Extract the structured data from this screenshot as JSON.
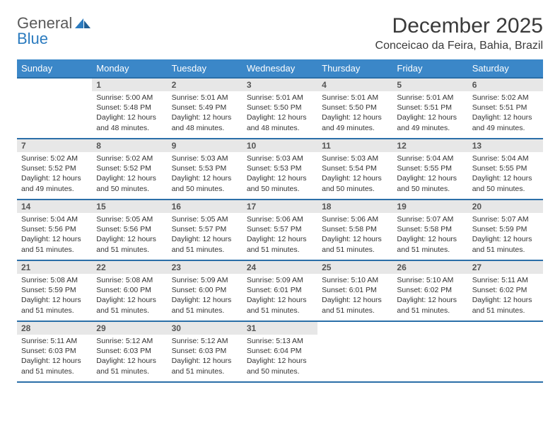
{
  "brand": {
    "part1": "General",
    "part2": "Blue"
  },
  "title": "December 2025",
  "location": "Conceicao da Feira, Bahia, Brazil",
  "colors": {
    "header_bg": "#3b87c8",
    "header_border": "#2b6fa8",
    "daynum_bg": "#e7e7e7",
    "text": "#333333",
    "brand_gray": "#5a5a5a",
    "brand_blue": "#2b7bbf"
  },
  "weekdays": [
    "Sunday",
    "Monday",
    "Tuesday",
    "Wednesday",
    "Thursday",
    "Friday",
    "Saturday"
  ],
  "weeks": [
    [
      {
        "day": "",
        "sunrise": "",
        "sunset": "",
        "daylight": ""
      },
      {
        "day": "1",
        "sunrise": "Sunrise: 5:00 AM",
        "sunset": "Sunset: 5:48 PM",
        "daylight": "Daylight: 12 hours and 48 minutes."
      },
      {
        "day": "2",
        "sunrise": "Sunrise: 5:01 AM",
        "sunset": "Sunset: 5:49 PM",
        "daylight": "Daylight: 12 hours and 48 minutes."
      },
      {
        "day": "3",
        "sunrise": "Sunrise: 5:01 AM",
        "sunset": "Sunset: 5:50 PM",
        "daylight": "Daylight: 12 hours and 48 minutes."
      },
      {
        "day": "4",
        "sunrise": "Sunrise: 5:01 AM",
        "sunset": "Sunset: 5:50 PM",
        "daylight": "Daylight: 12 hours and 49 minutes."
      },
      {
        "day": "5",
        "sunrise": "Sunrise: 5:01 AM",
        "sunset": "Sunset: 5:51 PM",
        "daylight": "Daylight: 12 hours and 49 minutes."
      },
      {
        "day": "6",
        "sunrise": "Sunrise: 5:02 AM",
        "sunset": "Sunset: 5:51 PM",
        "daylight": "Daylight: 12 hours and 49 minutes."
      }
    ],
    [
      {
        "day": "7",
        "sunrise": "Sunrise: 5:02 AM",
        "sunset": "Sunset: 5:52 PM",
        "daylight": "Daylight: 12 hours and 49 minutes."
      },
      {
        "day": "8",
        "sunrise": "Sunrise: 5:02 AM",
        "sunset": "Sunset: 5:52 PM",
        "daylight": "Daylight: 12 hours and 50 minutes."
      },
      {
        "day": "9",
        "sunrise": "Sunrise: 5:03 AM",
        "sunset": "Sunset: 5:53 PM",
        "daylight": "Daylight: 12 hours and 50 minutes."
      },
      {
        "day": "10",
        "sunrise": "Sunrise: 5:03 AM",
        "sunset": "Sunset: 5:53 PM",
        "daylight": "Daylight: 12 hours and 50 minutes."
      },
      {
        "day": "11",
        "sunrise": "Sunrise: 5:03 AM",
        "sunset": "Sunset: 5:54 PM",
        "daylight": "Daylight: 12 hours and 50 minutes."
      },
      {
        "day": "12",
        "sunrise": "Sunrise: 5:04 AM",
        "sunset": "Sunset: 5:55 PM",
        "daylight": "Daylight: 12 hours and 50 minutes."
      },
      {
        "day": "13",
        "sunrise": "Sunrise: 5:04 AM",
        "sunset": "Sunset: 5:55 PM",
        "daylight": "Daylight: 12 hours and 50 minutes."
      }
    ],
    [
      {
        "day": "14",
        "sunrise": "Sunrise: 5:04 AM",
        "sunset": "Sunset: 5:56 PM",
        "daylight": "Daylight: 12 hours and 51 minutes."
      },
      {
        "day": "15",
        "sunrise": "Sunrise: 5:05 AM",
        "sunset": "Sunset: 5:56 PM",
        "daylight": "Daylight: 12 hours and 51 minutes."
      },
      {
        "day": "16",
        "sunrise": "Sunrise: 5:05 AM",
        "sunset": "Sunset: 5:57 PM",
        "daylight": "Daylight: 12 hours and 51 minutes."
      },
      {
        "day": "17",
        "sunrise": "Sunrise: 5:06 AM",
        "sunset": "Sunset: 5:57 PM",
        "daylight": "Daylight: 12 hours and 51 minutes."
      },
      {
        "day": "18",
        "sunrise": "Sunrise: 5:06 AM",
        "sunset": "Sunset: 5:58 PM",
        "daylight": "Daylight: 12 hours and 51 minutes."
      },
      {
        "day": "19",
        "sunrise": "Sunrise: 5:07 AM",
        "sunset": "Sunset: 5:58 PM",
        "daylight": "Daylight: 12 hours and 51 minutes."
      },
      {
        "day": "20",
        "sunrise": "Sunrise: 5:07 AM",
        "sunset": "Sunset: 5:59 PM",
        "daylight": "Daylight: 12 hours and 51 minutes."
      }
    ],
    [
      {
        "day": "21",
        "sunrise": "Sunrise: 5:08 AM",
        "sunset": "Sunset: 5:59 PM",
        "daylight": "Daylight: 12 hours and 51 minutes."
      },
      {
        "day": "22",
        "sunrise": "Sunrise: 5:08 AM",
        "sunset": "Sunset: 6:00 PM",
        "daylight": "Daylight: 12 hours and 51 minutes."
      },
      {
        "day": "23",
        "sunrise": "Sunrise: 5:09 AM",
        "sunset": "Sunset: 6:00 PM",
        "daylight": "Daylight: 12 hours and 51 minutes."
      },
      {
        "day": "24",
        "sunrise": "Sunrise: 5:09 AM",
        "sunset": "Sunset: 6:01 PM",
        "daylight": "Daylight: 12 hours and 51 minutes."
      },
      {
        "day": "25",
        "sunrise": "Sunrise: 5:10 AM",
        "sunset": "Sunset: 6:01 PM",
        "daylight": "Daylight: 12 hours and 51 minutes."
      },
      {
        "day": "26",
        "sunrise": "Sunrise: 5:10 AM",
        "sunset": "Sunset: 6:02 PM",
        "daylight": "Daylight: 12 hours and 51 minutes."
      },
      {
        "day": "27",
        "sunrise": "Sunrise: 5:11 AM",
        "sunset": "Sunset: 6:02 PM",
        "daylight": "Daylight: 12 hours and 51 minutes."
      }
    ],
    [
      {
        "day": "28",
        "sunrise": "Sunrise: 5:11 AM",
        "sunset": "Sunset: 6:03 PM",
        "daylight": "Daylight: 12 hours and 51 minutes."
      },
      {
        "day": "29",
        "sunrise": "Sunrise: 5:12 AM",
        "sunset": "Sunset: 6:03 PM",
        "daylight": "Daylight: 12 hours and 51 minutes."
      },
      {
        "day": "30",
        "sunrise": "Sunrise: 5:12 AM",
        "sunset": "Sunset: 6:03 PM",
        "daylight": "Daylight: 12 hours and 51 minutes."
      },
      {
        "day": "31",
        "sunrise": "Sunrise: 5:13 AM",
        "sunset": "Sunset: 6:04 PM",
        "daylight": "Daylight: 12 hours and 50 minutes."
      },
      {
        "day": "",
        "sunrise": "",
        "sunset": "",
        "daylight": ""
      },
      {
        "day": "",
        "sunrise": "",
        "sunset": "",
        "daylight": ""
      },
      {
        "day": "",
        "sunrise": "",
        "sunset": "",
        "daylight": ""
      }
    ]
  ]
}
